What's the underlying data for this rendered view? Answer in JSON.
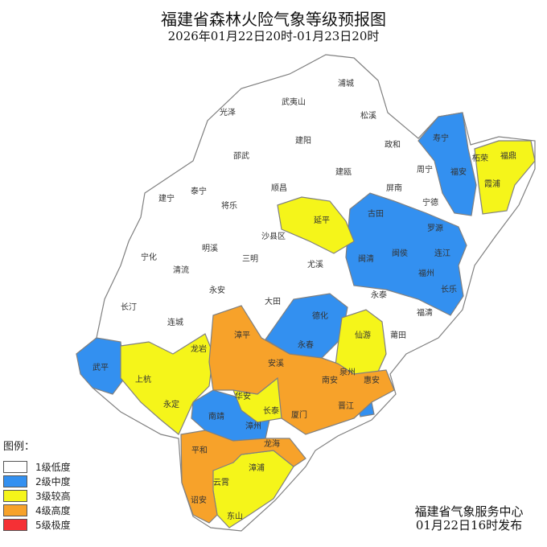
{
  "title": "福建省森林火险气象等级预报图",
  "subtitle": "2026年01月22日20时-01月23日20时",
  "legend": {
    "title": "图例：",
    "items": [
      {
        "level": 1,
        "label": "1级低度",
        "color": "#ffffff"
      },
      {
        "level": 2,
        "label": "2级中度",
        "color": "#3390f0"
      },
      {
        "level": 3,
        "label": "3级较高",
        "color": "#f5f51a"
      },
      {
        "level": 4,
        "label": "4级高度",
        "color": "#f7a22a"
      },
      {
        "level": 5,
        "label": "5级极度",
        "color": "#f53035"
      }
    ]
  },
  "issuer": {
    "name": "福建省气象服务中心",
    "time": "01月22日16时发布"
  },
  "counties": [
    {
      "name": "浦城",
      "level": 1
    },
    {
      "name": "光泽",
      "level": 1
    },
    {
      "name": "武夷山",
      "level": 1
    },
    {
      "name": "松溪",
      "level": 1
    },
    {
      "name": "建阳",
      "level": 1
    },
    {
      "name": "政和",
      "level": 1
    },
    {
      "name": "邵武",
      "level": 1
    },
    {
      "name": "寿宁",
      "level": 2
    },
    {
      "name": "柘荣",
      "level": 1
    },
    {
      "name": "福鼎",
      "level": 3
    },
    {
      "name": "周宁",
      "level": 1
    },
    {
      "name": "福安",
      "level": 2
    },
    {
      "name": "霞浦",
      "level": 3
    },
    {
      "name": "建瓯",
      "level": 1
    },
    {
      "name": "屏南",
      "level": 1
    },
    {
      "name": "宁德",
      "level": 1
    },
    {
      "name": "建宁",
      "level": 1
    },
    {
      "name": "泰宁",
      "level": 1
    },
    {
      "name": "将乐",
      "level": 1
    },
    {
      "name": "顺昌",
      "level": 1
    },
    {
      "name": "延平",
      "level": 3
    },
    {
      "name": "古田",
      "level": 2
    },
    {
      "name": "罗源",
      "level": 2
    },
    {
      "name": "沙县区",
      "level": 1
    },
    {
      "name": "宁化",
      "level": 1
    },
    {
      "name": "明溪",
      "level": 1
    },
    {
      "name": "三明",
      "level": 1
    },
    {
      "name": "闽清",
      "level": 2
    },
    {
      "name": "闽侯",
      "level": 2
    },
    {
      "name": "连江",
      "level": 2
    },
    {
      "name": "福州",
      "level": 2
    },
    {
      "name": "清流",
      "level": 1
    },
    {
      "name": "尤溪",
      "level": 1
    },
    {
      "name": "永安",
      "level": 1
    },
    {
      "name": "长乐",
      "level": 2
    },
    {
      "name": "长汀",
      "level": 1
    },
    {
      "name": "大田",
      "level": 1
    },
    {
      "name": "永泰",
      "level": 1
    },
    {
      "name": "福清",
      "level": 1
    },
    {
      "name": "连城",
      "level": 1
    },
    {
      "name": "德化",
      "level": 2
    },
    {
      "name": "漳平",
      "level": 4
    },
    {
      "name": "龙岩",
      "level": 3
    },
    {
      "name": "永春",
      "level": 2
    },
    {
      "name": "仙游",
      "level": 3
    },
    {
      "name": "莆田",
      "level": 1
    },
    {
      "name": "武平",
      "level": 2
    },
    {
      "name": "上杭",
      "level": 3
    },
    {
      "name": "安溪",
      "level": 4
    },
    {
      "name": "南安",
      "level": 4
    },
    {
      "name": "泉州",
      "level": 3
    },
    {
      "name": "惠安",
      "level": 4
    },
    {
      "name": "永定",
      "level": 3
    },
    {
      "name": "华安",
      "level": 3
    },
    {
      "name": "长泰",
      "level": 3
    },
    {
      "name": "厦门",
      "level": 4
    },
    {
      "name": "晋江",
      "level": 3
    },
    {
      "name": "南靖",
      "level": 2
    },
    {
      "name": "漳州",
      "level": 2
    },
    {
      "name": "平和",
      "level": 4
    },
    {
      "name": "龙海",
      "level": 4
    },
    {
      "name": "漳浦",
      "level": 3
    },
    {
      "name": "云霄",
      "level": 3
    },
    {
      "name": "诏安",
      "level": 4
    },
    {
      "name": "东山",
      "level": 3
    }
  ]
}
